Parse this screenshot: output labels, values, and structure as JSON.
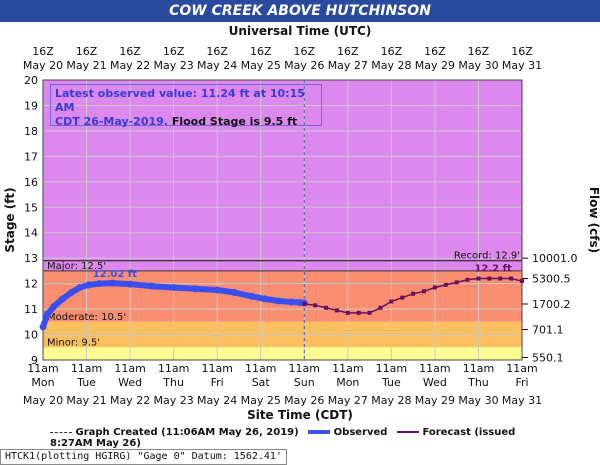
{
  "title": "COW CREEK ABOVE HUTCHINSON",
  "top_axis_title": "Universal Time (UTC)",
  "bottom_axis_title": "Site Time (CDT)",
  "left_axis_title": "Stage (ft)",
  "right_axis_title": "Flow (cfs)",
  "note": {
    "line1": "Latest observed value: 11.24 ft at 10:15 AM",
    "line2_a": "CDT 26-May-2019.",
    "line2_b": " Flood Stage is 9.5 ft"
  },
  "legend": {
    "graph_created": "Graph Created (11:06AM May 26, 2019)",
    "observed": "Observed",
    "forecast": "Forecast (issued 8:27AM May 26)"
  },
  "footer": "HTCK1(plotting HGIRG) \"Gage 0\" Datum: 1562.41'",
  "colors": {
    "major": "#dd88ee",
    "moderate_band": "#f98f70",
    "minor_band": "#fdc060",
    "action_band": "#fcfc90",
    "observed": "#3b4ff0",
    "forecast": "#6b0f5c"
  },
  "chart_data": {
    "type": "line",
    "ylim": [
      9,
      20
    ],
    "yticks": [
      9,
      10,
      11,
      12,
      13,
      14,
      15,
      16,
      17,
      18,
      19,
      20
    ],
    "right_ticks": [
      {
        "stage": 9.1,
        "label": "550.1"
      },
      {
        "stage": 10.2,
        "label": "701.1"
      },
      {
        "stage": 11.2,
        "label": "1700.2"
      },
      {
        "stage": 12.2,
        "label": "5300.5"
      },
      {
        "stage": 13.0,
        "label": "10001.0"
      }
    ],
    "bottom_hours": [
      "11am",
      "11am",
      "11am",
      "11am",
      "11am",
      "11am",
      "11am",
      "11am",
      "11am",
      "11am",
      "11am",
      "11am"
    ],
    "bottom_days": [
      "Mon",
      "Tue",
      "Wed",
      "Thu",
      "Fri",
      "Sat",
      "Sun",
      "Mon",
      "Tue",
      "Wed",
      "Thu",
      "Fri"
    ],
    "bottom_dates": [
      "May 20",
      "May 21",
      "May 22",
      "May 23",
      "May 24",
      "May 25",
      "May 26",
      "May 27",
      "May 28",
      "May 29",
      "May 30",
      "May 31"
    ],
    "top_hours": [
      "16Z",
      "16Z",
      "16Z",
      "16Z",
      "16Z",
      "16Z",
      "16Z",
      "16Z",
      "16Z",
      "16Z",
      "16Z",
      "16Z"
    ],
    "top_dates": [
      "May 20",
      "May 21",
      "May 22",
      "May 23",
      "May 24",
      "May 25",
      "May 26",
      "May 27",
      "May 28",
      "May 29",
      "May 30",
      "May 31"
    ],
    "thresholds": [
      {
        "name": "Major",
        "label": "Major: 12.5'",
        "value": 12.5
      },
      {
        "name": "Moderate",
        "label": "Moderate: 10.5'",
        "value": 10.5
      },
      {
        "name": "Minor",
        "label": "Minor: 9.5'",
        "value": 9.5
      },
      {
        "name": "Record",
        "label": "Record: 12.9'",
        "value": 12.9
      }
    ],
    "observed": {
      "name": "Observed",
      "peak_label": "12.02 ft",
      "x": [
        0,
        0.1,
        0.25,
        0.45,
        0.65,
        0.85,
        1.05,
        1.3,
        1.6,
        2.0,
        2.5,
        3.0,
        3.5,
        4.0,
        4.4,
        4.8,
        5.1,
        5.4,
        5.7,
        5.9,
        6.0
      ],
      "y": [
        10.3,
        10.8,
        11.1,
        11.4,
        11.65,
        11.85,
        11.95,
        12.0,
        12.02,
        11.98,
        11.9,
        11.85,
        11.8,
        11.75,
        11.65,
        11.5,
        11.4,
        11.32,
        11.28,
        11.26,
        11.24
      ]
    },
    "forecast": {
      "name": "Forecast",
      "peak_label": "12.2 ft",
      "x": [
        6.0,
        6.25,
        6.5,
        6.75,
        7.0,
        7.25,
        7.5,
        7.75,
        8.0,
        8.25,
        8.5,
        8.75,
        9.0,
        9.25,
        9.5,
        9.75,
        10.0,
        10.25,
        10.5,
        10.75,
        11.0
      ],
      "y": [
        11.2,
        11.15,
        11.05,
        10.95,
        10.85,
        10.85,
        10.85,
        11.05,
        11.3,
        11.45,
        11.6,
        11.7,
        11.85,
        11.95,
        12.05,
        12.15,
        12.2,
        12.2,
        12.2,
        12.2,
        12.1
      ]
    },
    "graph_created_x": 6.0
  }
}
